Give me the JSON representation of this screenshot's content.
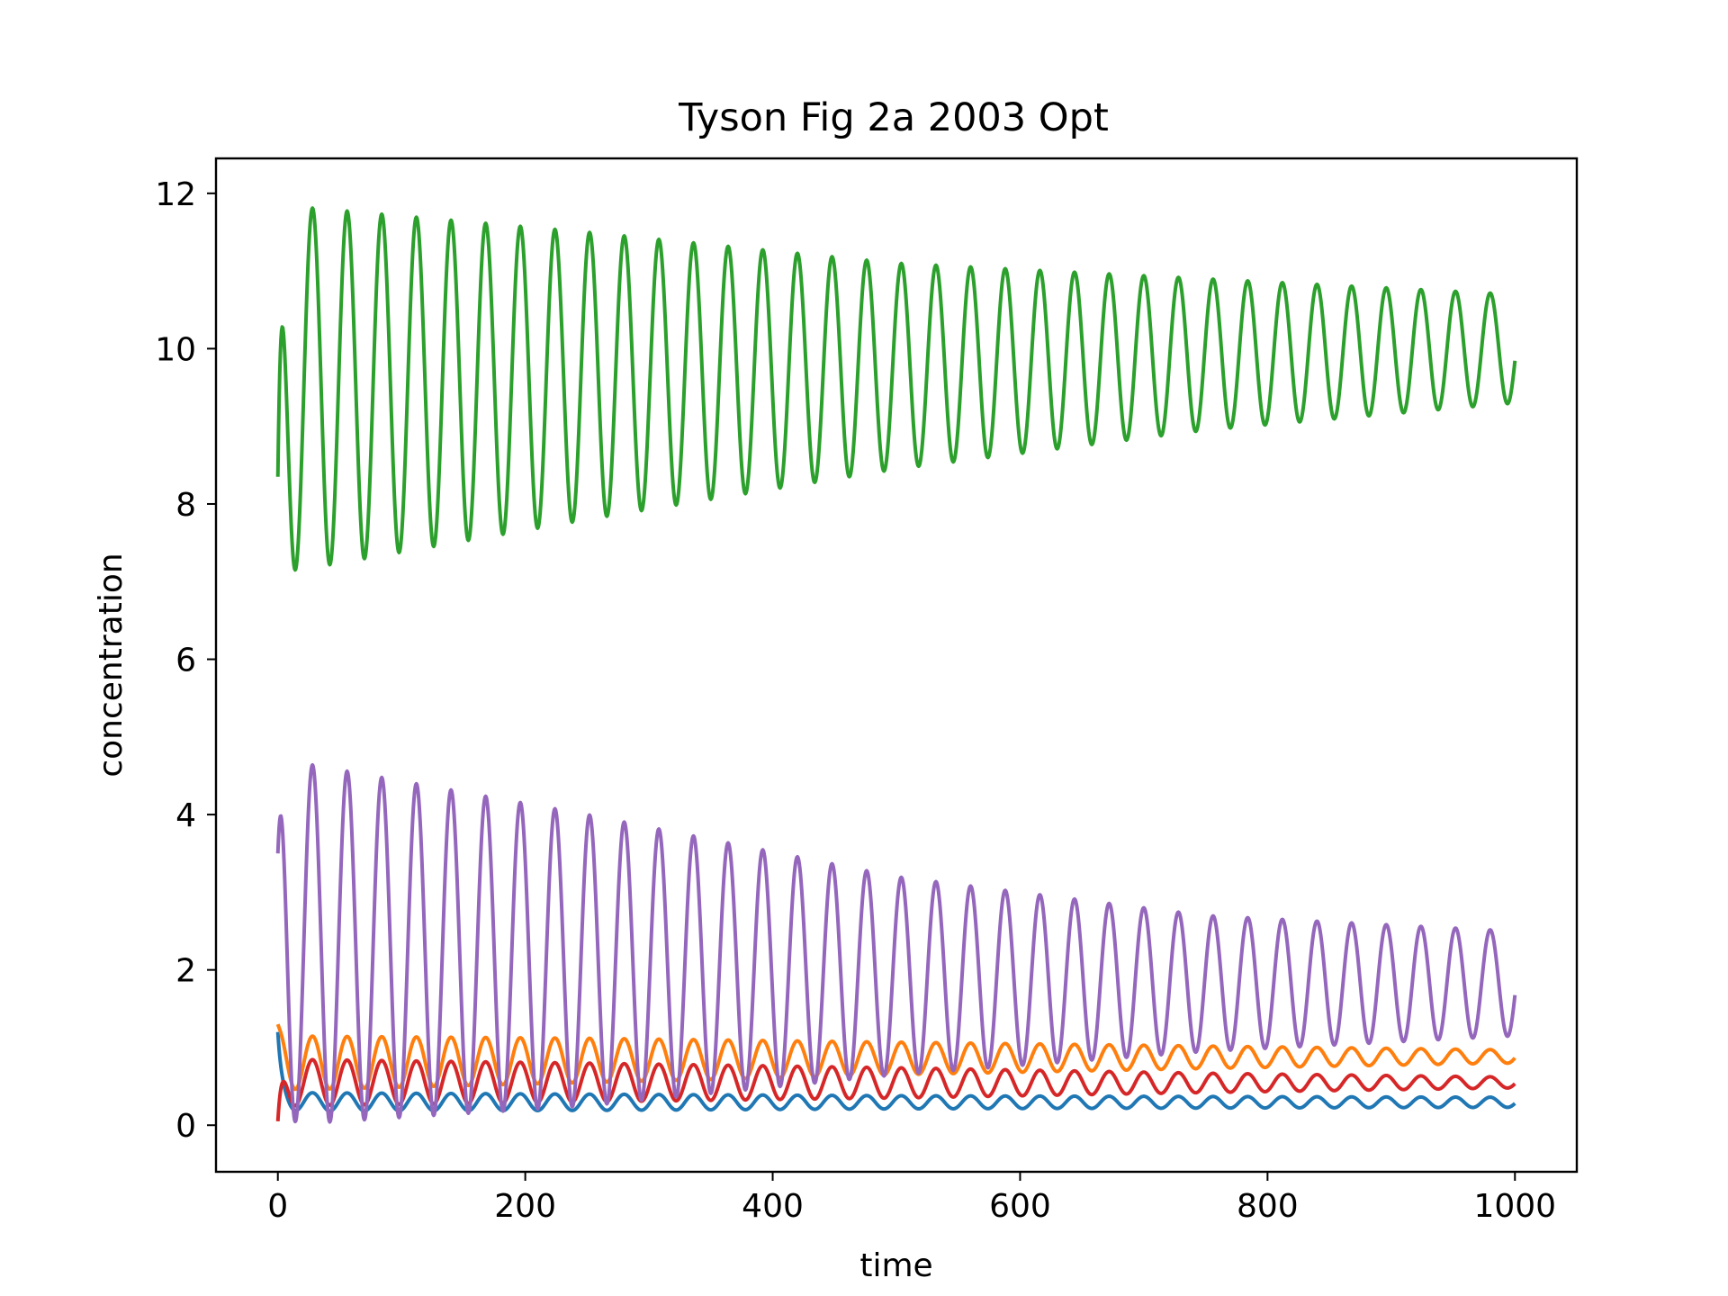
{
  "chart_data": {
    "type": "line",
    "title": "Tyson Fig 2a 2003 Opt",
    "xlabel": "time",
    "ylabel": "concentration",
    "xlim": [
      -50,
      1050
    ],
    "ylim": [
      -0.6,
      12.45
    ],
    "xticks": [
      0,
      200,
      400,
      600,
      800,
      1000
    ],
    "yticks": [
      0,
      2,
      4,
      6,
      8,
      10,
      12
    ],
    "grid": false,
    "legend": "none",
    "series": [
      {
        "color": "#1f77b4",
        "start": 1.2,
        "period": 28,
        "peaks": [
          0.42,
          0.4,
          0.38,
          0.37,
          0.36
        ],
        "troughs": [
          0.18,
          0.19,
          0.21,
          0.22,
          0.23
        ],
        "end": 0.25
      },
      {
        "color": "#ff7f0e",
        "start": 1.3,
        "period": 28,
        "peaks": [
          1.15,
          1.12,
          1.07,
          1.02,
          0.97
        ],
        "troughs": [
          0.45,
          0.55,
          0.65,
          0.73,
          0.8
        ],
        "end": 0.85
      },
      {
        "color": "#2ca02c",
        "start": 8.35,
        "period": 28,
        "peaks": [
          11.85,
          11.5,
          11.1,
          10.9,
          10.7
        ],
        "troughs": [
          7.1,
          7.8,
          8.45,
          8.95,
          9.3
        ],
        "end": 9.35
      },
      {
        "color": "#d62728",
        "start": 0.05,
        "period": 28,
        "peaks": [
          0.85,
          0.8,
          0.74,
          0.67,
          0.62
        ],
        "troughs": [
          0.25,
          0.3,
          0.35,
          0.42,
          0.48
        ],
        "end": 0.55
      },
      {
        "color": "#9467bd",
        "start": 3.5,
        "period": 28,
        "peaks": [
          4.72,
          4.0,
          3.2,
          2.7,
          2.5
        ],
        "troughs": [
          0.0,
          0.25,
          0.65,
          0.95,
          1.15
        ],
        "end": 2.5
      }
    ]
  }
}
